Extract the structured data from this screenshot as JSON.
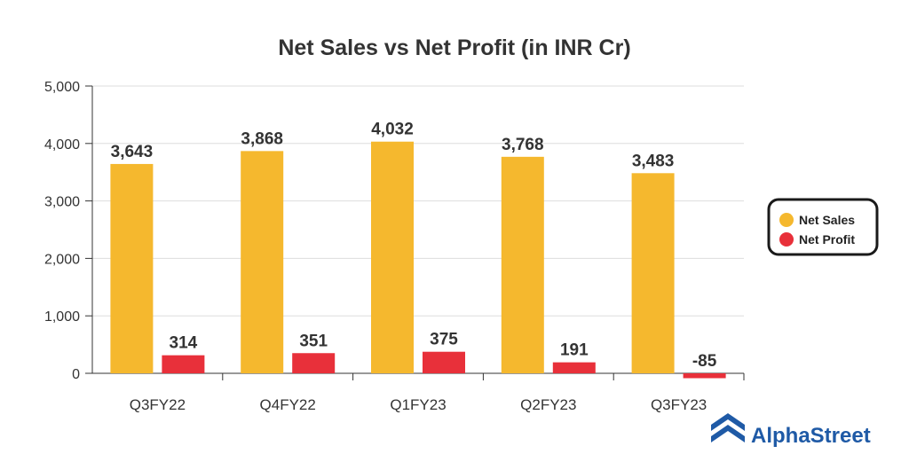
{
  "colors": {
    "net_sales": "#f5b82e",
    "net_profit": "#e8303a",
    "brand": "#1f5aa6"
  },
  "brand": {
    "name": "AlphaStreet",
    "icon": "alphastreet-logo-icon"
  },
  "chart_data": {
    "type": "bar",
    "title": "Net Sales vs Net Profit (in INR Cr)",
    "xlabel": "",
    "ylabel": "",
    "categories": [
      "Q3FY22",
      "Q4FY22",
      "Q1FY23",
      "Q2FY23",
      "Q3FY23"
    ],
    "series": [
      {
        "name": "Net Sales",
        "values": [
          3643,
          3868,
          4032,
          3768,
          3483
        ],
        "labels": [
          "3,643",
          "3,868",
          "4,032",
          "3,768",
          "3,483"
        ]
      },
      {
        "name": "Net Profit",
        "values": [
          314,
          351,
          375,
          191,
          -85
        ],
        "labels": [
          "314",
          "351",
          "375",
          "191",
          "-85"
        ]
      }
    ],
    "ylim": [
      0,
      5000
    ],
    "yticks": [
      0,
      1000,
      2000,
      3000,
      4000,
      5000
    ],
    "ytick_labels": [
      "0",
      "1,000",
      "2,000",
      "3,000",
      "4,000",
      "5,000"
    ],
    "grid": true,
    "legend_position": "right"
  }
}
